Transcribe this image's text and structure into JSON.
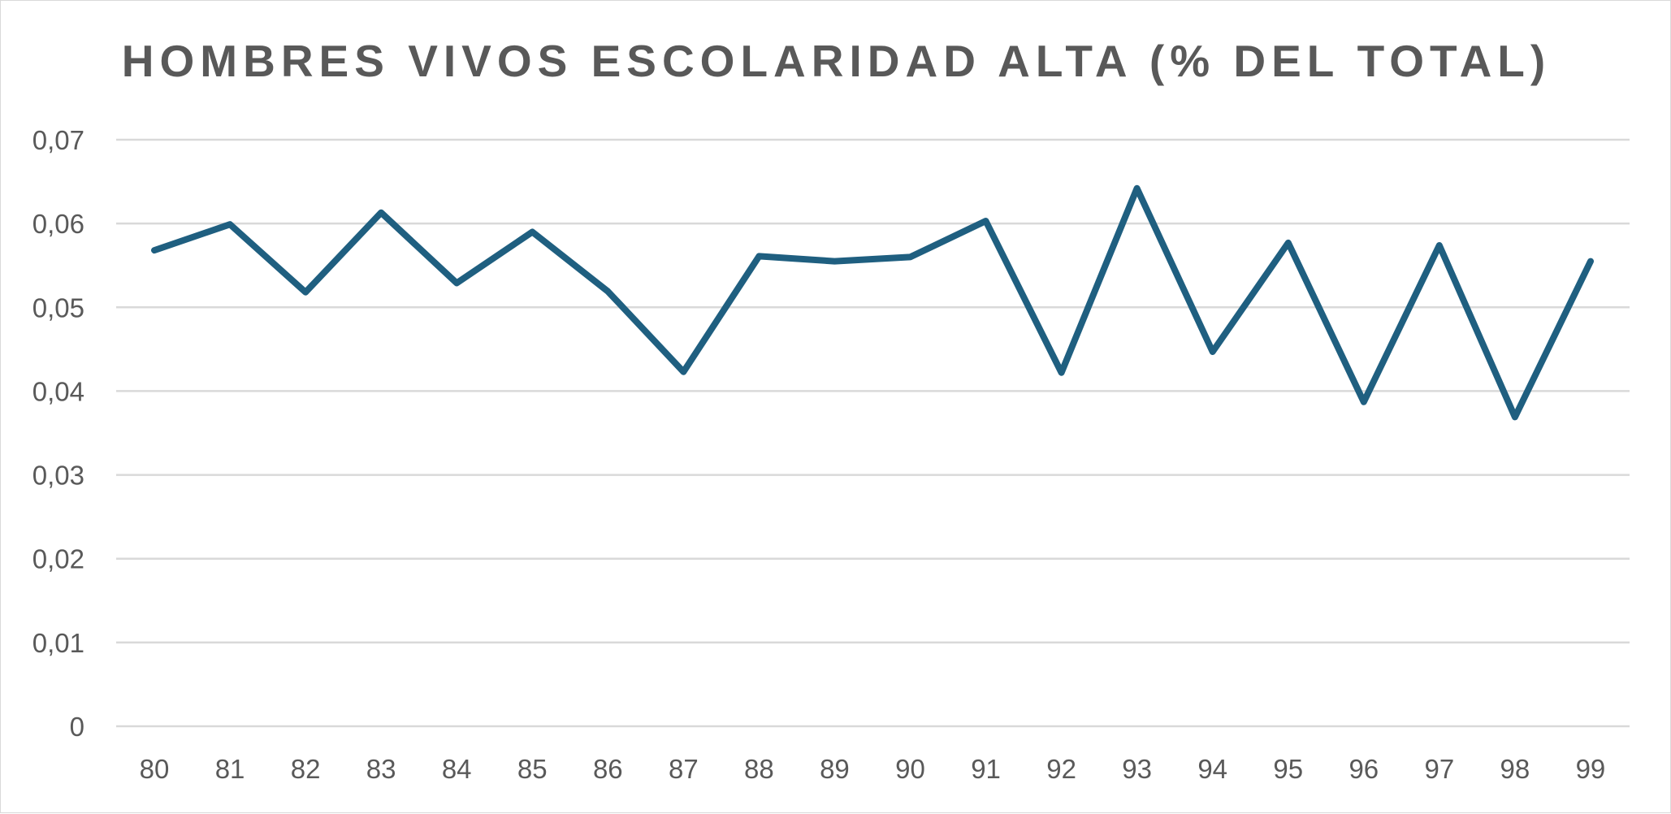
{
  "chart_data": {
    "type": "line",
    "title": "HOMBRES VIVOS ESCOLARIDAD ALTA (% DEL TOTAL)",
    "xlabel": "",
    "ylabel": "",
    "categories": [
      "80",
      "81",
      "82",
      "83",
      "84",
      "85",
      "86",
      "87",
      "88",
      "89",
      "90",
      "91",
      "92",
      "93",
      "94",
      "95",
      "96",
      "97",
      "98",
      "99"
    ],
    "series": [
      {
        "values": [
          0.0568,
          0.0599,
          0.0518,
          0.0613,
          0.0529,
          0.059,
          0.0519,
          0.0423,
          0.0561,
          0.0555,
          0.056,
          0.0603,
          0.0422,
          0.0642,
          0.0447,
          0.0577,
          0.0387,
          0.0574,
          0.0369,
          0.0555
        ],
        "color": "#1f5f80"
      }
    ],
    "ylim": [
      0,
      0.07
    ],
    "yticks": [
      0,
      0.01,
      0.02,
      0.03,
      0.04,
      0.05,
      0.06,
      0.07
    ],
    "ytick_labels": [
      "0",
      "0,01",
      "0,02",
      "0,03",
      "0,04",
      "0,05",
      "0,06",
      "0,07"
    ],
    "grid": true,
    "legend": "none"
  }
}
